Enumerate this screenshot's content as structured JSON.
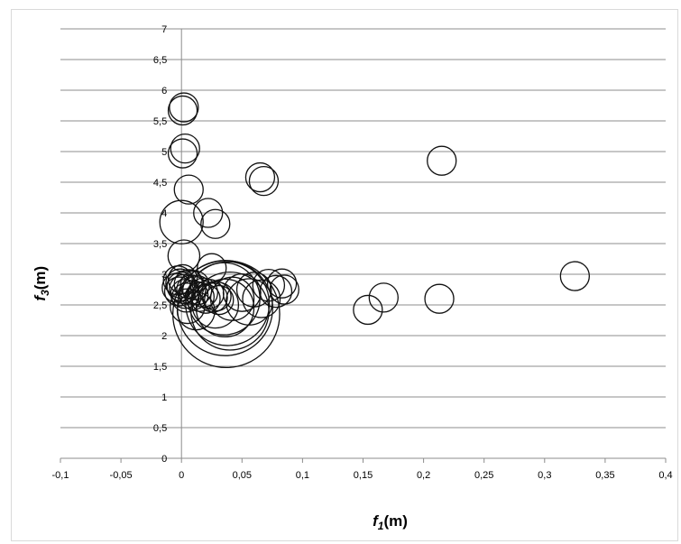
{
  "chart_data": {
    "type": "scatter",
    "subtype": "bubble",
    "xlabel": {
      "base": "f",
      "sub": "1",
      "unit": "(m)"
    },
    "ylabel": {
      "base": "f",
      "sub": "3",
      "unit": "(m)"
    },
    "xlim": [
      -0.1,
      0.4
    ],
    "ylim": [
      0,
      7
    ],
    "x_ticks": [
      "-0,1",
      "-0,05",
      "0",
      "0,05",
      "0,1",
      "0,15",
      "0,2",
      "0,25",
      "0,3",
      "0,35",
      "0,4"
    ],
    "y_ticks": [
      "0",
      "0,5",
      "1",
      "1,5",
      "2",
      "2,5",
      "3",
      "3,5",
      "4",
      "4,5",
      "5",
      "5,5",
      "6",
      "6,5",
      "7"
    ],
    "grid": "horizontal",
    "legend": "none",
    "bubble_size_unit": "relative",
    "points": [
      {
        "x": 0.002,
        "y": 5.72,
        "s": 1.0
      },
      {
        "x": 0.001,
        "y": 5.67,
        "s": 1.0
      },
      {
        "x": 0.003,
        "y": 5.05,
        "s": 1.0
      },
      {
        "x": 0.001,
        "y": 4.97,
        "s": 1.0
      },
      {
        "x": 0.065,
        "y": 4.58,
        "s": 1.0
      },
      {
        "x": 0.068,
        "y": 4.52,
        "s": 1.0
      },
      {
        "x": 0.215,
        "y": 4.85,
        "s": 1.0
      },
      {
        "x": 0.006,
        "y": 4.38,
        "s": 1.0
      },
      {
        "x": 0.022,
        "y": 4.0,
        "s": 1.0
      },
      {
        "x": 0.028,
        "y": 3.82,
        "s": 1.0
      },
      {
        "x": 0.0,
        "y": 3.85,
        "s": 1.5
      },
      {
        "x": 0.002,
        "y": 3.3,
        "s": 1.1
      },
      {
        "x": 0.025,
        "y": 3.1,
        "s": 1.0
      },
      {
        "x": 0.325,
        "y": 2.97,
        "s": 1.0
      },
      {
        "x": 0.213,
        "y": 2.6,
        "s": 1.0
      },
      {
        "x": 0.167,
        "y": 2.62,
        "s": 1.0
      },
      {
        "x": 0.154,
        "y": 2.42,
        "s": 1.0
      },
      {
        "x": -0.003,
        "y": 2.9,
        "s": 1.0
      },
      {
        "x": -0.001,
        "y": 2.85,
        "s": 1.0
      },
      {
        "x": 0.0,
        "y": 2.8,
        "s": 1.0
      },
      {
        "x": 0.002,
        "y": 2.76,
        "s": 1.0
      },
      {
        "x": -0.002,
        "y": 2.72,
        "s": 1.0
      },
      {
        "x": 0.003,
        "y": 2.68,
        "s": 1.0
      },
      {
        "x": 0.006,
        "y": 2.84,
        "s": 1.0
      },
      {
        "x": 0.008,
        "y": 2.75,
        "s": 1.0
      },
      {
        "x": 0.004,
        "y": 2.62,
        "s": 1.0
      },
      {
        "x": 0.01,
        "y": 2.66,
        "s": 1.0
      },
      {
        "x": 0.013,
        "y": 2.74,
        "s": 1.0
      },
      {
        "x": 0.015,
        "y": 2.63,
        "s": 1.0
      },
      {
        "x": 0.018,
        "y": 2.7,
        "s": 1.0
      },
      {
        "x": 0.02,
        "y": 2.6,
        "s": 1.0
      },
      {
        "x": 0.023,
        "y": 2.68,
        "s": 1.0
      },
      {
        "x": 0.026,
        "y": 2.62,
        "s": 1.0
      },
      {
        "x": 0.029,
        "y": 2.64,
        "s": 1.0
      },
      {
        "x": 0.031,
        "y": 2.58,
        "s": 1.0
      },
      {
        "x": -0.004,
        "y": 2.78,
        "s": 1.0
      },
      {
        "x": 0.001,
        "y": 2.92,
        "s": 1.0
      },
      {
        "x": 0.011,
        "y": 2.82,
        "s": 1.0
      },
      {
        "x": 0.005,
        "y": 2.48,
        "s": 1.2
      },
      {
        "x": 0.012,
        "y": 2.4,
        "s": 1.3
      },
      {
        "x": 0.028,
        "y": 2.5,
        "s": 1.6
      },
      {
        "x": 0.036,
        "y": 2.45,
        "s": 2.0
      },
      {
        "x": 0.042,
        "y": 2.6,
        "s": 1.5
      },
      {
        "x": 0.05,
        "y": 2.7,
        "s": 1.3
      },
      {
        "x": 0.056,
        "y": 2.55,
        "s": 1.6
      },
      {
        "x": 0.06,
        "y": 2.75,
        "s": 1.2
      },
      {
        "x": 0.066,
        "y": 2.6,
        "s": 1.3
      },
      {
        "x": 0.072,
        "y": 2.82,
        "s": 1.1
      },
      {
        "x": 0.078,
        "y": 2.72,
        "s": 1.1
      },
      {
        "x": 0.083,
        "y": 2.85,
        "s": 1.0
      },
      {
        "x": 0.085,
        "y": 2.75,
        "s": 1.0
      },
      {
        "x": 0.037,
        "y": 2.35,
        "s": 3.7
      },
      {
        "x": 0.036,
        "y": 2.45,
        "s": 3.3
      },
      {
        "x": 0.038,
        "y": 2.52,
        "s": 2.9
      },
      {
        "x": 0.035,
        "y": 2.6,
        "s": 2.5
      },
      {
        "x": 0.04,
        "y": 2.4,
        "s": 2.7
      }
    ]
  }
}
